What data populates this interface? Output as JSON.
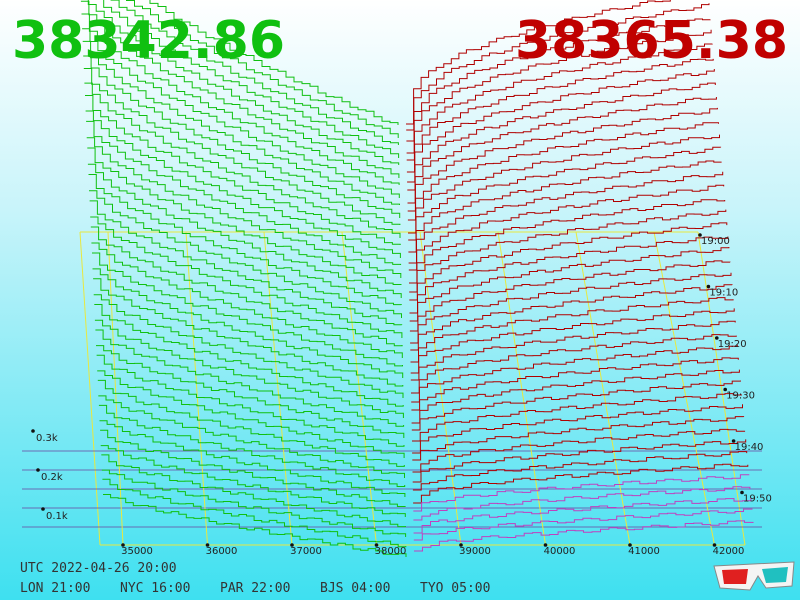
{
  "bid_price": "38342.86",
  "ask_price": "38365.38",
  "price_axis": [
    "35000",
    "36000",
    "37000",
    "38000",
    "39000",
    "40000",
    "41000",
    "42000"
  ],
  "volume_axis": [
    "0.3k",
    "0.2k",
    "0.1k"
  ],
  "time_axis": [
    "19:00",
    "19:10",
    "19:20",
    "19:30",
    "19:40",
    "19:50"
  ],
  "clock": {
    "utc": "UTC 2022-04-26 20:00",
    "cities": [
      "LON 21:00",
      "NYC 16:00",
      "PAR 22:00",
      "BJS 04:00",
      "TYO 05:00"
    ]
  }
}
